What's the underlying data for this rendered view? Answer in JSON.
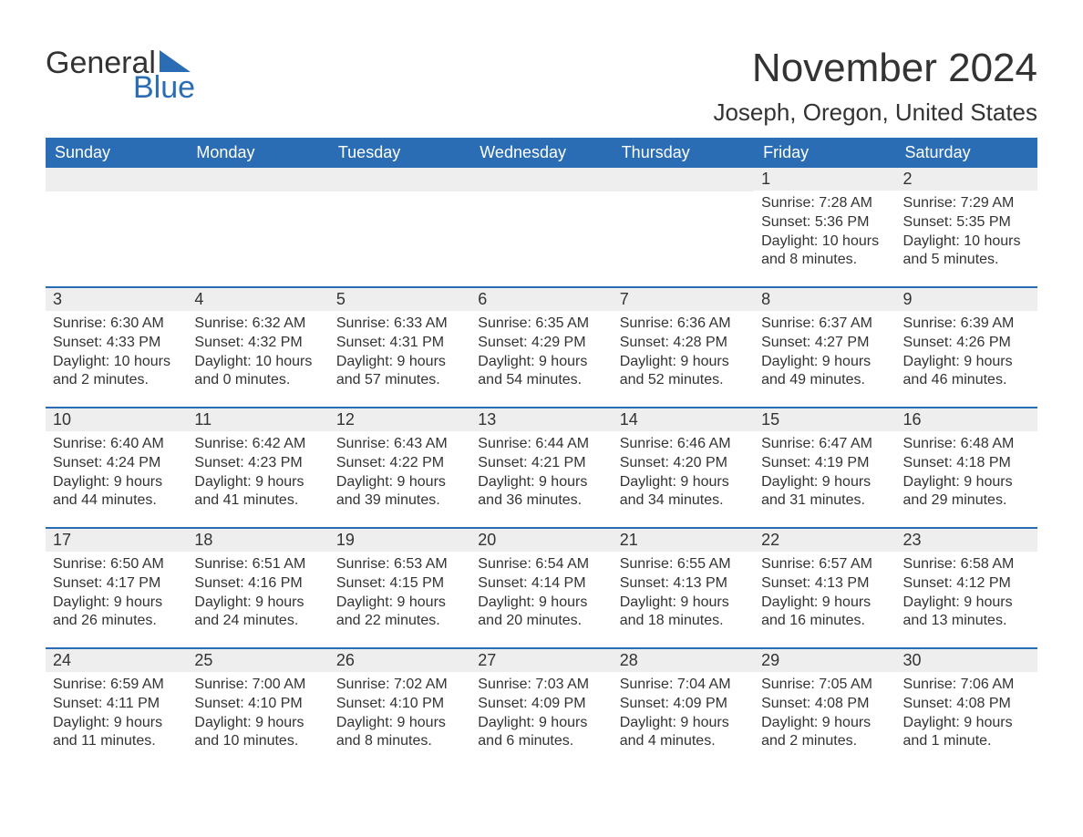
{
  "logo": {
    "text1": "General",
    "text2": "Blue",
    "accent_color": "#2a6db5"
  },
  "title": "November 2024",
  "location": "Joseph, Oregon, United States",
  "colors": {
    "header_bg": "#2a6db5",
    "header_text": "#ffffff",
    "rule": "#2a6db5",
    "daynum_bg": "#eeeeee",
    "text": "#333333",
    "page_bg": "#ffffff"
  },
  "day_headers": [
    "Sunday",
    "Monday",
    "Tuesday",
    "Wednesday",
    "Thursday",
    "Friday",
    "Saturday"
  ],
  "labels": {
    "sunrise": "Sunrise:",
    "sunset": "Sunset:",
    "daylight": "Daylight:"
  },
  "weeks": [
    [
      null,
      null,
      null,
      null,
      null,
      {
        "n": "1",
        "sunrise": "7:28 AM",
        "sunset": "5:36 PM",
        "daylight": "10 hours and 8 minutes."
      },
      {
        "n": "2",
        "sunrise": "7:29 AM",
        "sunset": "5:35 PM",
        "daylight": "10 hours and 5 minutes."
      }
    ],
    [
      {
        "n": "3",
        "sunrise": "6:30 AM",
        "sunset": "4:33 PM",
        "daylight": "10 hours and 2 minutes."
      },
      {
        "n": "4",
        "sunrise": "6:32 AM",
        "sunset": "4:32 PM",
        "daylight": "10 hours and 0 minutes."
      },
      {
        "n": "5",
        "sunrise": "6:33 AM",
        "sunset": "4:31 PM",
        "daylight": "9 hours and 57 minutes."
      },
      {
        "n": "6",
        "sunrise": "6:35 AM",
        "sunset": "4:29 PM",
        "daylight": "9 hours and 54 minutes."
      },
      {
        "n": "7",
        "sunrise": "6:36 AM",
        "sunset": "4:28 PM",
        "daylight": "9 hours and 52 minutes."
      },
      {
        "n": "8",
        "sunrise": "6:37 AM",
        "sunset": "4:27 PM",
        "daylight": "9 hours and 49 minutes."
      },
      {
        "n": "9",
        "sunrise": "6:39 AM",
        "sunset": "4:26 PM",
        "daylight": "9 hours and 46 minutes."
      }
    ],
    [
      {
        "n": "10",
        "sunrise": "6:40 AM",
        "sunset": "4:24 PM",
        "daylight": "9 hours and 44 minutes."
      },
      {
        "n": "11",
        "sunrise": "6:42 AM",
        "sunset": "4:23 PM",
        "daylight": "9 hours and 41 minutes."
      },
      {
        "n": "12",
        "sunrise": "6:43 AM",
        "sunset": "4:22 PM",
        "daylight": "9 hours and 39 minutes."
      },
      {
        "n": "13",
        "sunrise": "6:44 AM",
        "sunset": "4:21 PM",
        "daylight": "9 hours and 36 minutes."
      },
      {
        "n": "14",
        "sunrise": "6:46 AM",
        "sunset": "4:20 PM",
        "daylight": "9 hours and 34 minutes."
      },
      {
        "n": "15",
        "sunrise": "6:47 AM",
        "sunset": "4:19 PM",
        "daylight": "9 hours and 31 minutes."
      },
      {
        "n": "16",
        "sunrise": "6:48 AM",
        "sunset": "4:18 PM",
        "daylight": "9 hours and 29 minutes."
      }
    ],
    [
      {
        "n": "17",
        "sunrise": "6:50 AM",
        "sunset": "4:17 PM",
        "daylight": "9 hours and 26 minutes."
      },
      {
        "n": "18",
        "sunrise": "6:51 AM",
        "sunset": "4:16 PM",
        "daylight": "9 hours and 24 minutes."
      },
      {
        "n": "19",
        "sunrise": "6:53 AM",
        "sunset": "4:15 PM",
        "daylight": "9 hours and 22 minutes."
      },
      {
        "n": "20",
        "sunrise": "6:54 AM",
        "sunset": "4:14 PM",
        "daylight": "9 hours and 20 minutes."
      },
      {
        "n": "21",
        "sunrise": "6:55 AM",
        "sunset": "4:13 PM",
        "daylight": "9 hours and 18 minutes."
      },
      {
        "n": "22",
        "sunrise": "6:57 AM",
        "sunset": "4:13 PM",
        "daylight": "9 hours and 16 minutes."
      },
      {
        "n": "23",
        "sunrise": "6:58 AM",
        "sunset": "4:12 PM",
        "daylight": "9 hours and 13 minutes."
      }
    ],
    [
      {
        "n": "24",
        "sunrise": "6:59 AM",
        "sunset": "4:11 PM",
        "daylight": "9 hours and 11 minutes."
      },
      {
        "n": "25",
        "sunrise": "7:00 AM",
        "sunset": "4:10 PM",
        "daylight": "9 hours and 10 minutes."
      },
      {
        "n": "26",
        "sunrise": "7:02 AM",
        "sunset": "4:10 PM",
        "daylight": "9 hours and 8 minutes."
      },
      {
        "n": "27",
        "sunrise": "7:03 AM",
        "sunset": "4:09 PM",
        "daylight": "9 hours and 6 minutes."
      },
      {
        "n": "28",
        "sunrise": "7:04 AM",
        "sunset": "4:09 PM",
        "daylight": "9 hours and 4 minutes."
      },
      {
        "n": "29",
        "sunrise": "7:05 AM",
        "sunset": "4:08 PM",
        "daylight": "9 hours and 2 minutes."
      },
      {
        "n": "30",
        "sunrise": "7:06 AM",
        "sunset": "4:08 PM",
        "daylight": "9 hours and 1 minute."
      }
    ]
  ]
}
